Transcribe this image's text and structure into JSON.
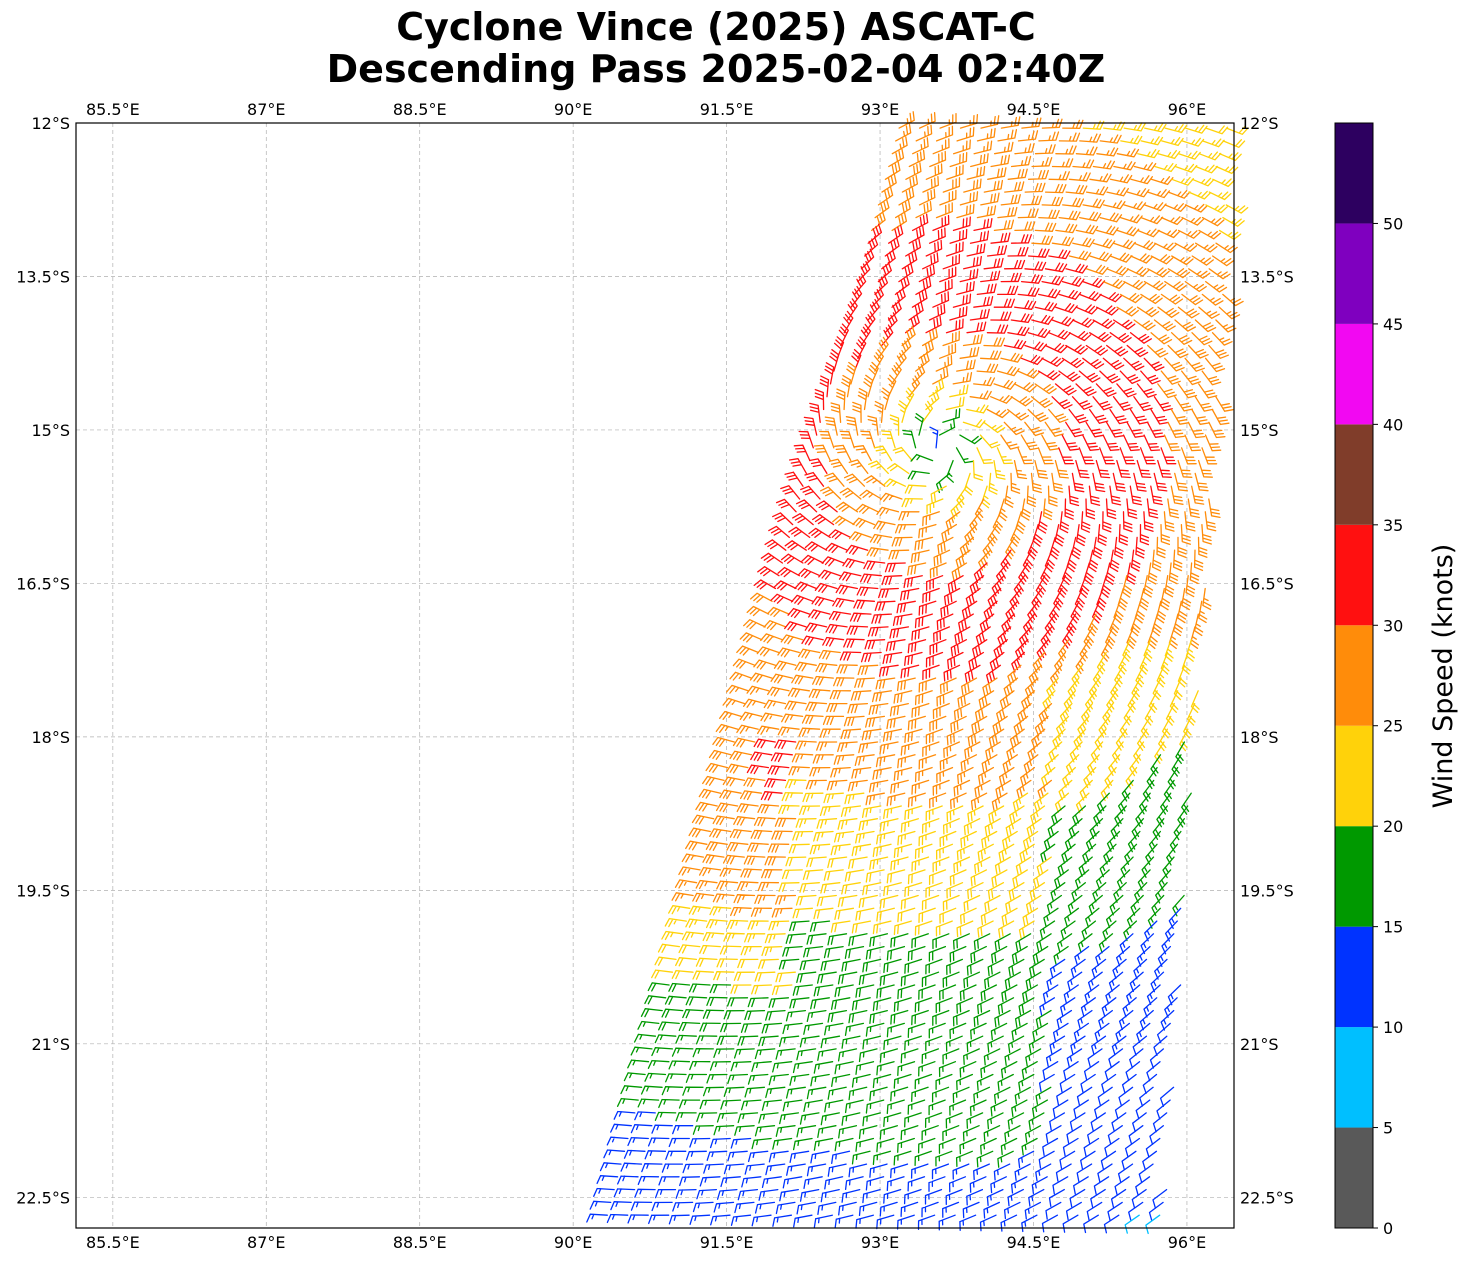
{
  "chart_data": {
    "type": "map-wind-barbs",
    "title": "Cyclone Vince (2025) ASCAT-C",
    "subtitle": "Descending Pass 2025-02-04 02:40Z",
    "lon_ticks": [
      "85.5°E",
      "87°E",
      "88.5°E",
      "90°E",
      "91.5°E",
      "93°E",
      "94.5°E",
      "96°E"
    ],
    "lat_ticks": [
      "12°S",
      "13.5°S",
      "15°S",
      "16.5°S",
      "18°S",
      "19.5°S",
      "21°S",
      "22.5°S"
    ],
    "lon_values": [
      85.5,
      87,
      88.5,
      90,
      91.5,
      93,
      94.5,
      96
    ],
    "lat_values": [
      -12,
      -13.5,
      -15,
      -16.5,
      -18,
      -19.5,
      -21,
      -22.5
    ],
    "lon_range": [
      85.14,
      96.46
    ],
    "lat_range": [
      -12.0,
      -22.8
    ],
    "grid": true,
    "colorbar": {
      "label": "Wind Speed (knots)",
      "ticks": [
        "0",
        "5",
        "10",
        "15",
        "20",
        "25",
        "30",
        "35",
        "40",
        "45",
        "50"
      ],
      "bins": [
        {
          "min": 0,
          "max": 5,
          "color": "#595959"
        },
        {
          "min": 5,
          "max": 10,
          "color": "#00bfff"
        },
        {
          "min": 10,
          "max": 15,
          "color": "#0033ff"
        },
        {
          "min": 15,
          "max": 20,
          "color": "#009900"
        },
        {
          "min": 20,
          "max": 25,
          "color": "#ffd20a"
        },
        {
          "min": 25,
          "max": 30,
          "color": "#ff8c0a"
        },
        {
          "min": 30,
          "max": 35,
          "color": "#ff1010"
        },
        {
          "min": 35,
          "max": 40,
          "color": "#803d2a"
        },
        {
          "min": 40,
          "max": 45,
          "color": "#f208f2"
        },
        {
          "min": 45,
          "max": 50,
          "color": "#7f00bf"
        },
        {
          "min": 50,
          "max": 55,
          "color": "#2d0060"
        }
      ]
    },
    "storm_center_approx": {
      "lon": 93.6,
      "lat": -15.2
    },
    "swath": {
      "north_lon": [
        93.2,
        96.46
      ],
      "south_lon": [
        90.3,
        95.8
      ]
    }
  }
}
